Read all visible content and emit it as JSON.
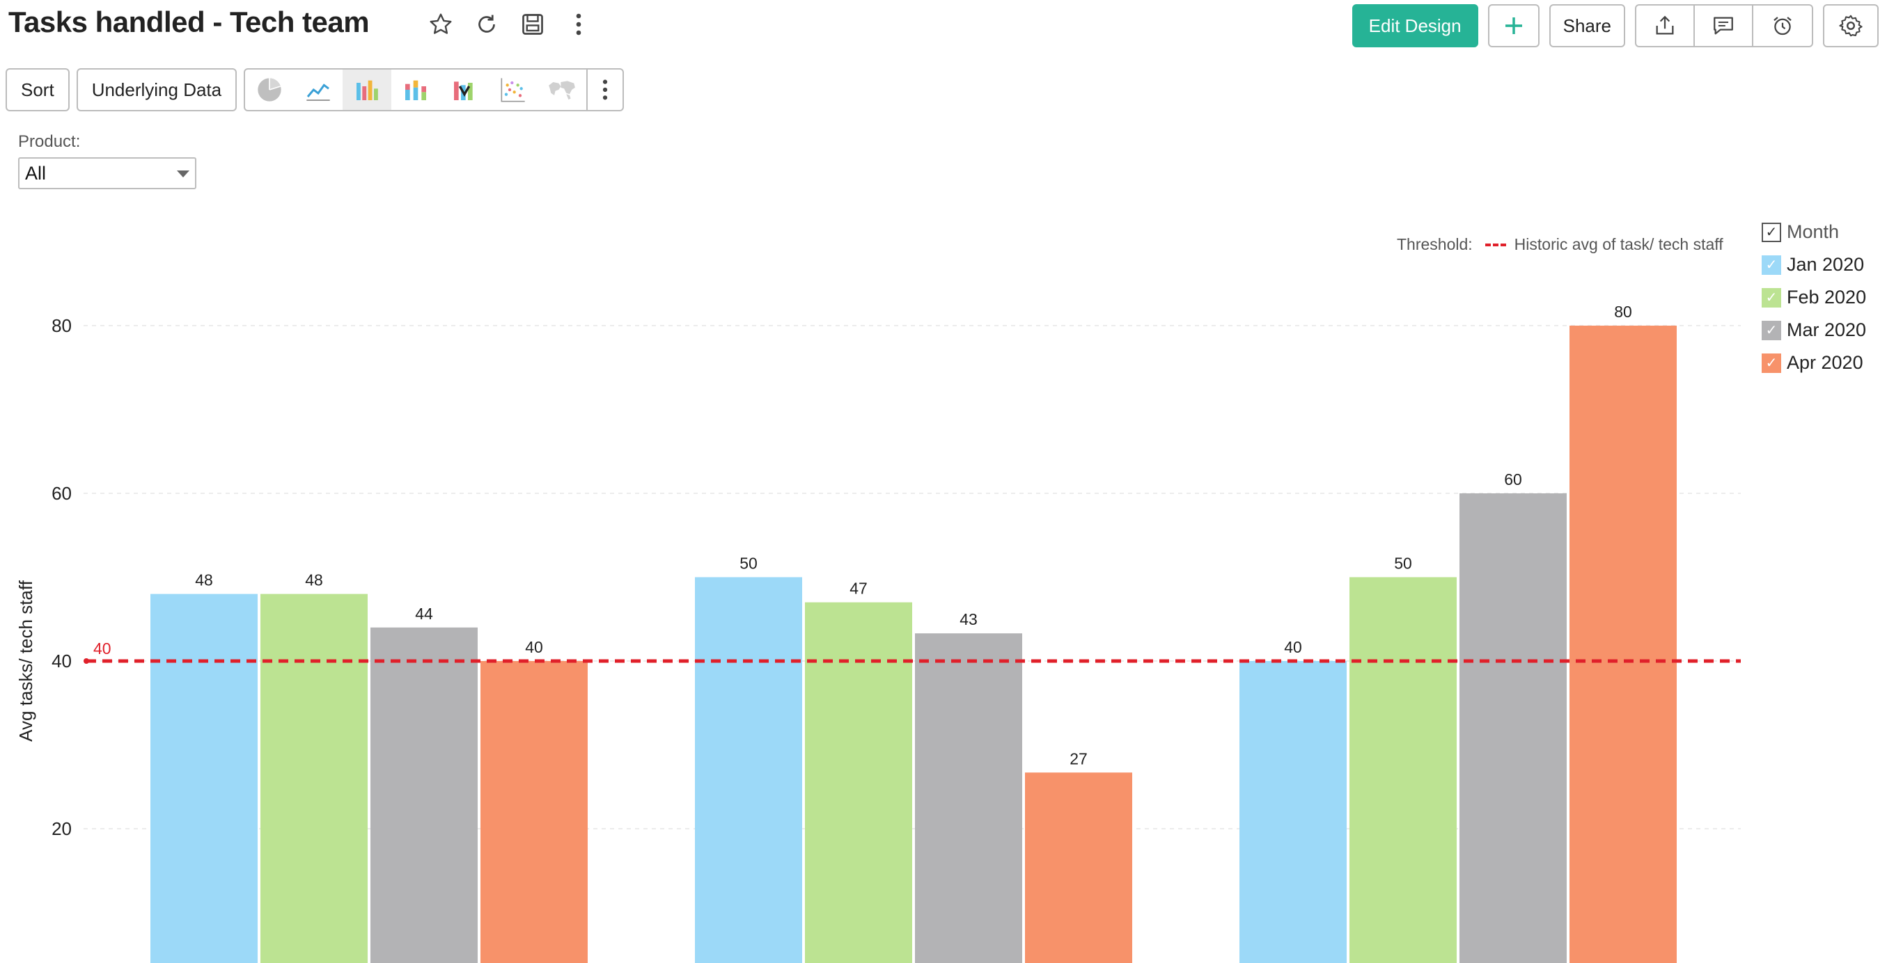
{
  "header": {
    "title": "Tasks handled - Tech team",
    "edit_design_label": "Edit Design",
    "add_label": "+",
    "share_label": "Share"
  },
  "toolbar": {
    "sort_label": "Sort",
    "underlying_label": "Underlying Data"
  },
  "filter": {
    "label": "Product:",
    "value": "All"
  },
  "threshold": {
    "label": "Threshold:",
    "name": "Historic avg of task/ tech staff",
    "value_label": "40",
    "color": "#e0202a"
  },
  "legend": {
    "title": "Month"
  },
  "chart_data": {
    "type": "bar",
    "title": "",
    "xlabel": "",
    "ylabel": "Avg tasks/ tech staff",
    "ylim": [
      0,
      85
    ],
    "y_ticks": [
      "20",
      "40",
      "60",
      "80"
    ],
    "grid": true,
    "legend_position": "right",
    "categories": [
      "",
      "",
      ""
    ],
    "series": [
      {
        "name": "Jan 2020",
        "color": "#9cd9f8",
        "values": [
          48,
          50,
          40
        ],
        "labels": [
          "48",
          "50",
          "40"
        ]
      },
      {
        "name": "Feb 2020",
        "color": "#bce392",
        "values": [
          48,
          47,
          50
        ],
        "labels": [
          "48",
          "47",
          "50"
        ]
      },
      {
        "name": "Mar 2020",
        "color": "#b3b3b5",
        "values": [
          44,
          43.3,
          60
        ],
        "labels": [
          "44",
          "43",
          "60"
        ]
      },
      {
        "name": "Apr 2020",
        "color": "#f7926a",
        "values": [
          40,
          26.7,
          80
        ],
        "labels": [
          "40",
          "27",
          "80"
        ]
      }
    ],
    "threshold_value": 40
  }
}
